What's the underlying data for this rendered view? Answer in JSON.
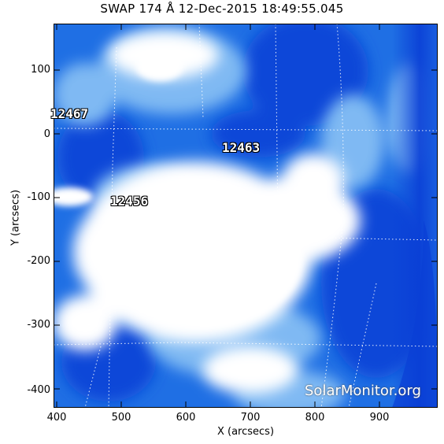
{
  "title": "SWAP 174 Å 12-Dec-2015 18:49:55.045",
  "axes": {
    "xlabel": "X (arcsecs)",
    "ylabel": "Y (arcsecs)",
    "xlim": [
      395,
      990
    ],
    "ylim": [
      -430,
      172
    ],
    "x_ticks": [
      "400",
      "500",
      "600",
      "700",
      "800",
      "900"
    ],
    "y_ticks": [
      "100",
      "0",
      "-100",
      "-200",
      "-300",
      "-400"
    ]
  },
  "regions": [
    {
      "label": "12467"
    },
    {
      "label": "12463"
    },
    {
      "label": "12456"
    }
  ],
  "watermark": "SolarMonitor.org",
  "colors": {
    "deep": "#0a3fd6",
    "mid": "#2a7fe8",
    "light": "#8fc4f5",
    "bright": "#ffffff"
  }
}
